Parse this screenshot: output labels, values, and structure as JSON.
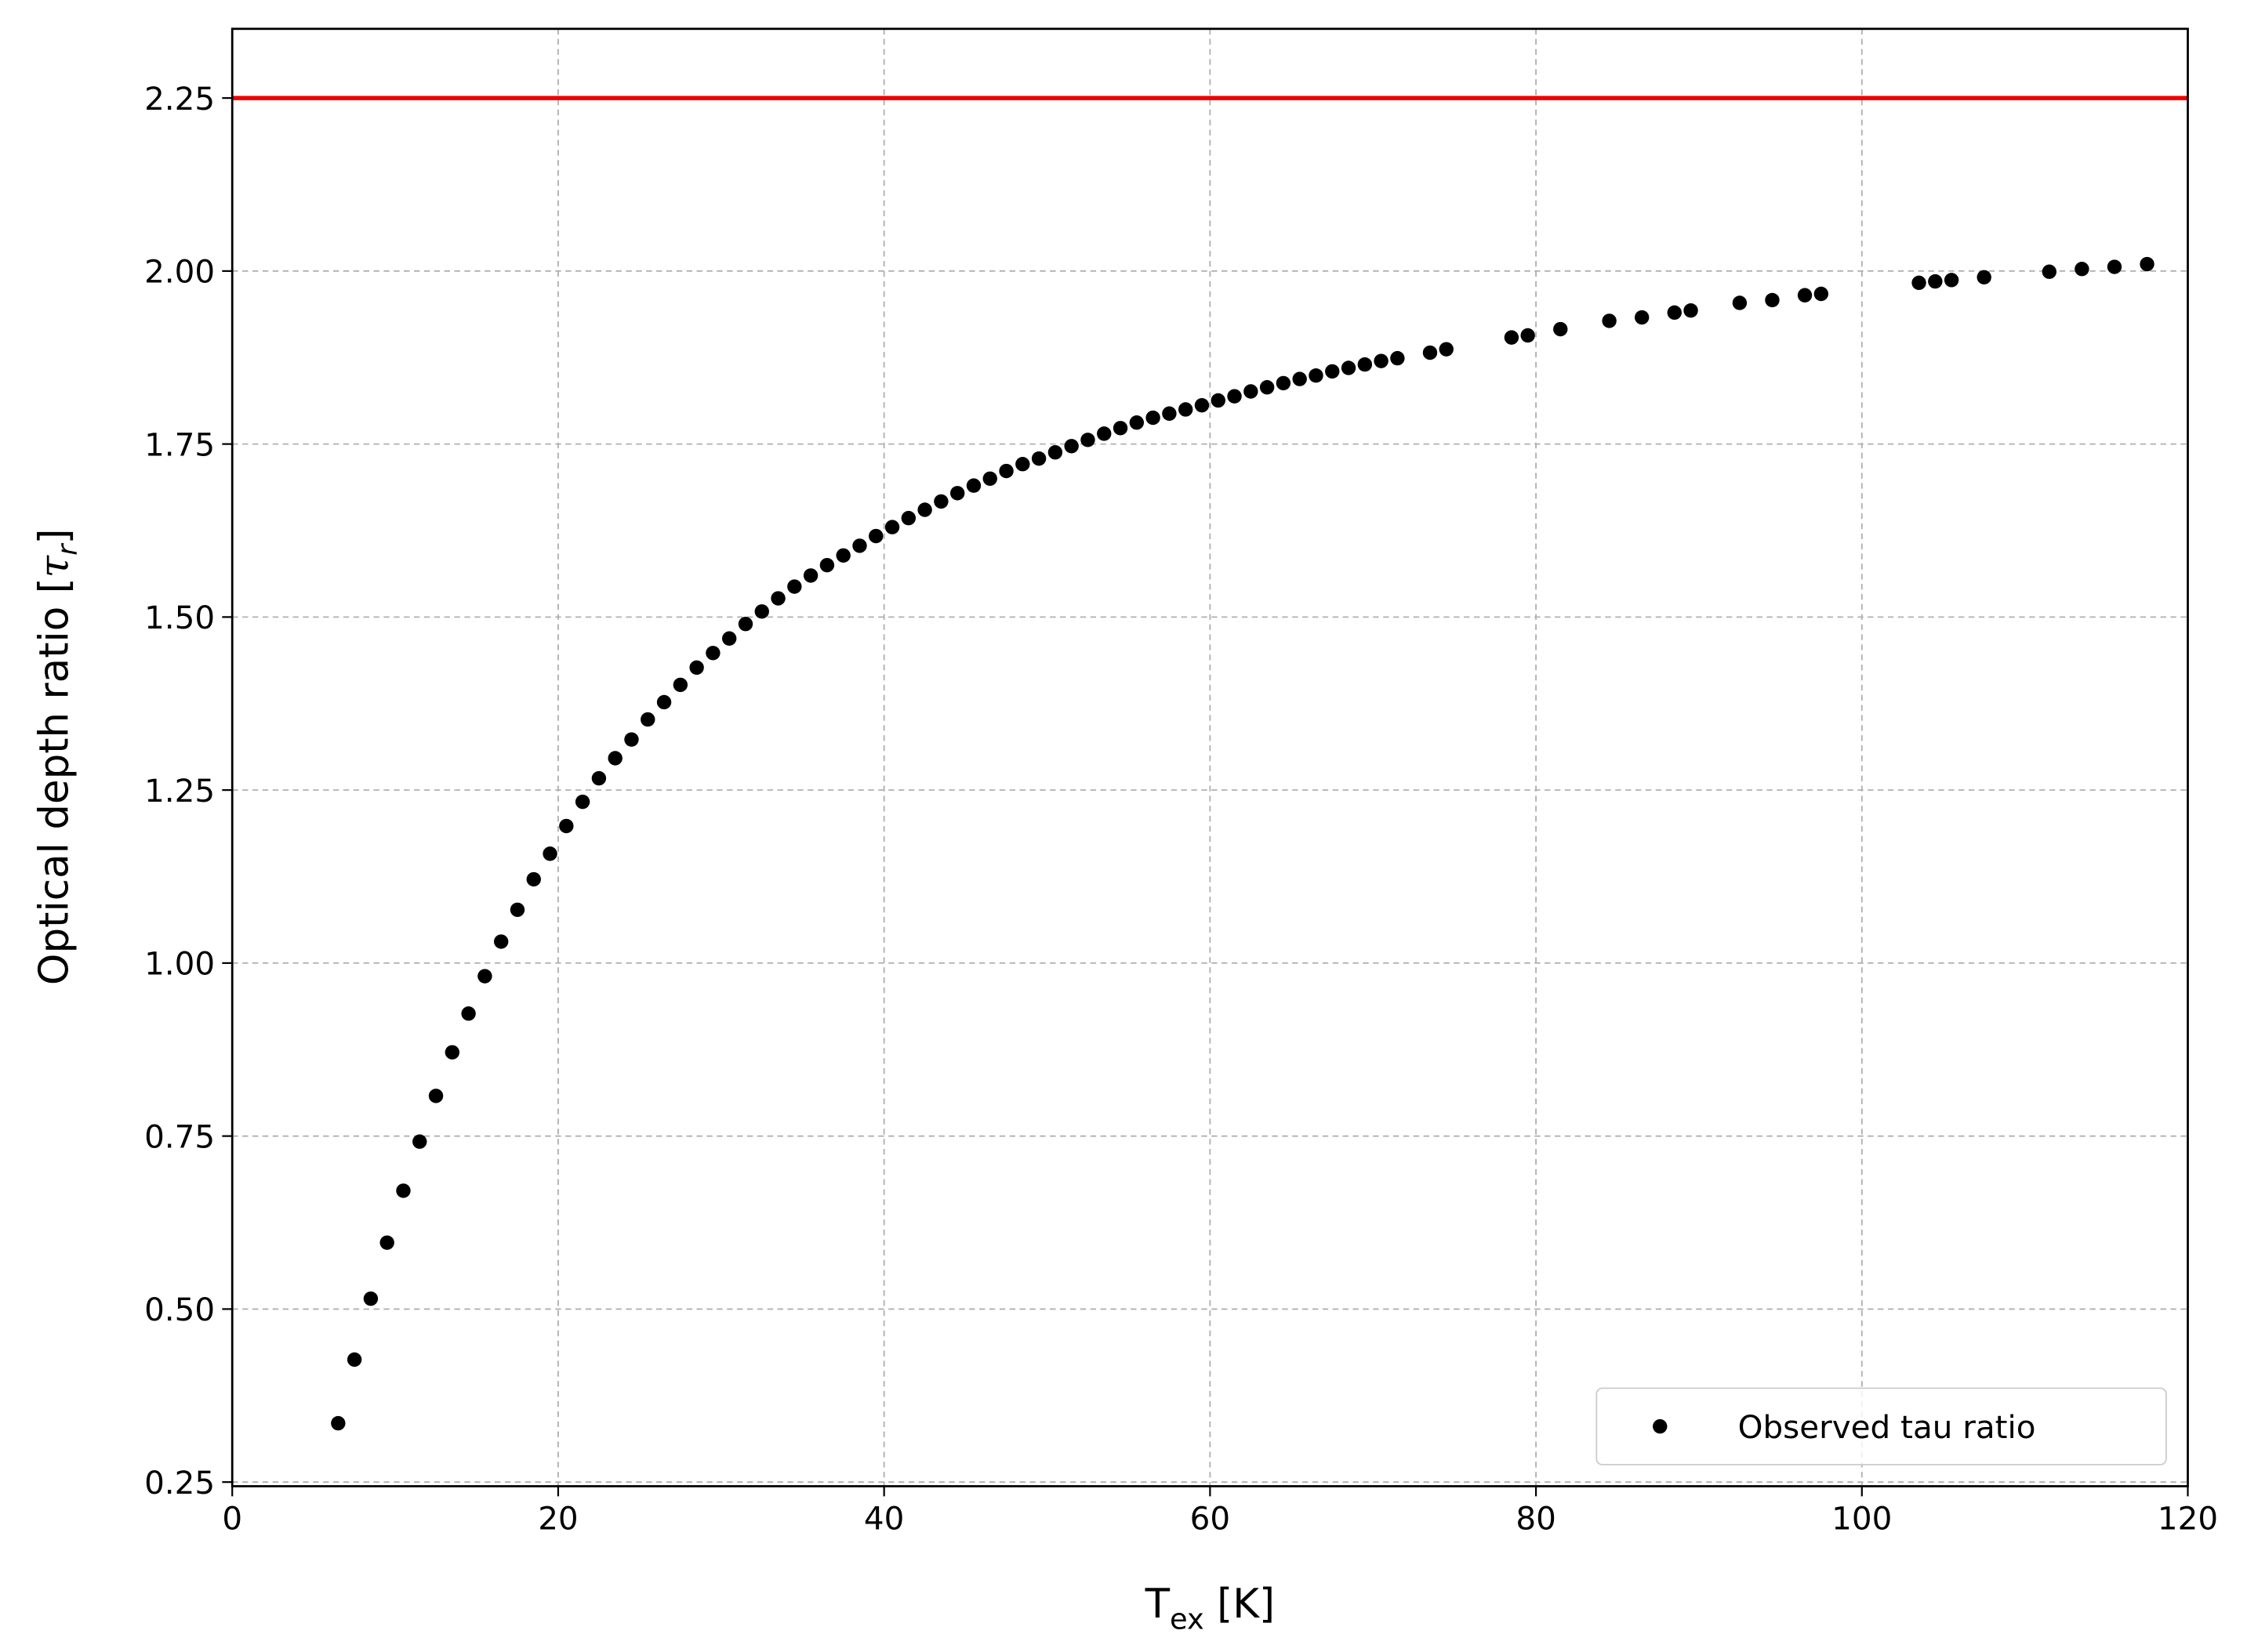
{
  "chart_data": {
    "type": "scatter",
    "x_label": "T",
    "x_label_sub": "ex",
    "x_label_suffix": " [K]",
    "y_label": "Optical depth ratio [",
    "y_label_symbol": "τ",
    "y_label_sub": "r",
    "y_label_suffix": "]",
    "xlim": [
      0,
      120
    ],
    "xticks": [
      0,
      20,
      40,
      60,
      80,
      100,
      120
    ],
    "ylim": [
      0.244,
      2.35
    ],
    "yticks": [
      0.25,
      {
        "value": 0.5,
        "label": "0.50"
      },
      0.75,
      {
        "value": 1.0,
        "label": "1.00"
      },
      1.25,
      {
        "value": 1.5,
        "label": "1.50"
      },
      1.75,
      {
        "value": 2.0,
        "label": "2.00"
      },
      2.25
    ],
    "grid": true,
    "legend": "lower right",
    "hlines": [
      {
        "y": 2.25,
        "color": "#ee0000"
      }
    ],
    "series": [
      {
        "name": "Observed tau ratio",
        "color": "#000000",
        "x": [
          6.5,
          7.5,
          8.5,
          9.5,
          10.5,
          11.5,
          12.5,
          13.5,
          14.5,
          15.5,
          16.5,
          17.5,
          18.5,
          19.5,
          20.5,
          21.5,
          22.5,
          23.5,
          24.5,
          25.5,
          26.5,
          27.5,
          28.5,
          29.5,
          30.5,
          31.5,
          32.5,
          33.5,
          34.5,
          35.5,
          36.5,
          37.5,
          38.5,
          39.5,
          40.5,
          41.5,
          42.5,
          43.5,
          44.5,
          45.5,
          46.5,
          47.5,
          48.5,
          49.5,
          50.5,
          51.5,
          52.5,
          53.5,
          54.5,
          55.5,
          56.5,
          57.5,
          58.5,
          59.5,
          60.5,
          61.5,
          62.5,
          63.5,
          64.5,
          65.5,
          66.5,
          67.5,
          68.5,
          69.5,
          70.5,
          71.5,
          73.5,
          74.5,
          78.5,
          79.5,
          81.5,
          84.5,
          86.5,
          88.5,
          89.5,
          92.5,
          94.5,
          96.5,
          97.5,
          103.5,
          104.5,
          105.5,
          107.5,
          111.5,
          113.5,
          115.5,
          117.5
        ],
        "values": [
          0.335,
          0.427,
          0.515,
          0.596,
          0.671,
          0.742,
          0.808,
          0.871,
          0.927,
          0.981,
          1.031,
          1.077,
          1.121,
          1.158,
          1.198,
          1.233,
          1.267,
          1.296,
          1.323,
          1.352,
          1.377,
          1.402,
          1.427,
          1.448,
          1.469,
          1.49,
          1.508,
          1.527,
          1.544,
          1.56,
          1.575,
          1.589,
          1.603,
          1.617,
          1.63,
          1.643,
          1.655,
          1.667,
          1.679,
          1.69,
          1.7,
          1.711,
          1.721,
          1.729,
          1.738,
          1.747,
          1.756,
          1.765,
          1.773,
          1.781,
          1.788,
          1.794,
          1.8,
          1.806,
          1.813,
          1.819,
          1.826,
          1.832,
          1.838,
          1.844,
          1.849,
          1.855,
          1.86,
          1.865,
          1.87,
          1.874,
          1.882,
          1.887,
          1.904,
          1.907,
          1.916,
          1.928,
          1.933,
          1.94,
          1.943,
          1.954,
          1.958,
          1.965,
          1.967,
          1.983,
          1.985,
          1.987,
          1.991,
          1.999,
          2.003,
          2.006,
          2.01
        ]
      }
    ]
  }
}
